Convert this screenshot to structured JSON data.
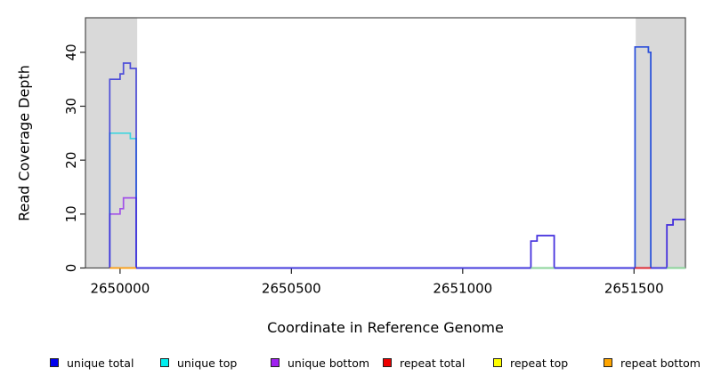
{
  "chart_data": {
    "type": "line",
    "subtype": "step-coverage",
    "title": "",
    "xlabel": "Coordinate in Reference Genome",
    "ylabel": "Read Coverage Depth",
    "xlim": [
      2649899,
      2651650
    ],
    "ylim": [
      0,
      46.4
    ],
    "x_ticks": [
      2650000,
      2650500,
      2651000,
      2651500
    ],
    "y_ticks": [
      0,
      10,
      20,
      30,
      40
    ],
    "grid": false,
    "legend_position": "bottom",
    "background_color": "#ffffff",
    "shaded_region_color": "#d9d9d9",
    "shaded_regions": [
      {
        "x0": 2649899,
        "x1": 2650050
      },
      {
        "x0": 2651505,
        "x1": 2651650
      }
    ],
    "series": [
      {
        "name": "unique top",
        "legend_color": "#00eeee",
        "line_color": "#2fd4de",
        "opacity": 0.9,
        "paths": [
          [
            [
              2649970,
              0
            ],
            [
              2649970,
              25
            ],
            [
              2650030,
              24
            ],
            [
              2650047,
              0
            ],
            [
              2651503,
              41
            ],
            [
              2651542,
              40
            ],
            [
              2651549,
              0
            ],
            [
              2651650,
              0
            ]
          ]
        ]
      },
      {
        "name": "unique bottom",
        "legend_color": "#a020f0",
        "line_color": "#9638ea",
        "opacity": 0.85,
        "paths": [
          [
            [
              2649970,
              0
            ],
            [
              2649970,
              10
            ],
            [
              2650000,
              11
            ],
            [
              2650010,
              13
            ],
            [
              2650047,
              0
            ],
            [
              2651199,
              5
            ],
            [
              2651217,
              6
            ],
            [
              2651267,
              0
            ],
            [
              2651596,
              8
            ],
            [
              2651614,
              9
            ],
            [
              2651650,
              9
            ]
          ]
        ]
      },
      {
        "name": "unique total",
        "legend_color": "#0000ee",
        "line_color": "#2b2bd8",
        "opacity": 0.8,
        "paths": [
          [
            [
              2649970,
              0
            ],
            [
              2649970,
              35
            ],
            [
              2650000,
              36
            ],
            [
              2650010,
              38
            ],
            [
              2650030,
              37
            ],
            [
              2650047,
              0
            ],
            [
              2651199,
              5
            ],
            [
              2651217,
              6
            ],
            [
              2651267,
              0
            ],
            [
              2651503,
              41
            ],
            [
              2651542,
              40
            ],
            [
              2651549,
              0
            ],
            [
              2651596,
              8
            ],
            [
              2651614,
              9
            ],
            [
              2651650,
              9
            ]
          ]
        ]
      },
      {
        "name": "repeat total",
        "legend_color": "#ee0000",
        "line_color": "#e32222",
        "opacity": 1,
        "paths": [
          [
            [
              2651503,
              0
            ],
            [
              2651549,
              0
            ]
          ]
        ]
      },
      {
        "name": "repeat top",
        "legend_color": "#ffff00",
        "line_color": "#8fd492",
        "opacity": 1,
        "paths": [
          [
            [
              2651199,
              0
            ],
            [
              2651267,
              0
            ]
          ],
          [
            [
              2651596,
              0
            ],
            [
              2651650,
              0
            ]
          ]
        ]
      },
      {
        "name": "repeat bottom",
        "legend_color": "#ffa500",
        "line_color": "#ff9d0a",
        "opacity": 1,
        "paths": [
          [
            [
              2649970,
              0
            ],
            [
              2650047,
              0
            ]
          ]
        ]
      }
    ]
  },
  "legend": {
    "items": [
      {
        "label": "unique total",
        "color": "#0000ee"
      },
      {
        "label": "unique top",
        "color": "#00eeee"
      },
      {
        "label": "unique bottom",
        "color": "#a020f0"
      },
      {
        "label": "repeat total",
        "color": "#ee0000"
      },
      {
        "label": "repeat top",
        "color": "#ffff00"
      },
      {
        "label": "repeat bottom",
        "color": "#ffa500"
      }
    ]
  }
}
